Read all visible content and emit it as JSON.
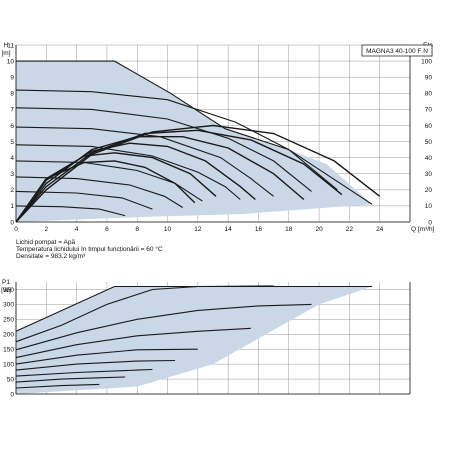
{
  "model_label": "MAGNA3 40-100 F N",
  "fluid_lines": [
    "Lichid pompat = Apă",
    "Temperatura lichidului în timpul funcționării = 60 °C",
    "Densitate = 983.2 kg/m³"
  ],
  "colors": {
    "area": "#c9d7e6",
    "curve": "#1a1a1a",
    "grid": "#9a9a9a"
  },
  "chart_data": [
    {
      "type": "line",
      "ylabel_lines": [
        "H",
        "[m]"
      ],
      "y2label_lines": [
        "Eta",
        "[%]"
      ],
      "xlabel": "Q [m³/h]",
      "xlim": [
        0,
        26
      ],
      "ylim": [
        0,
        11
      ],
      "y2lim": [
        0,
        110
      ],
      "x_ticks": [
        0,
        2,
        4,
        6,
        8,
        10,
        12,
        14,
        16,
        18,
        20,
        22,
        24
      ],
      "y_ticks": [
        0,
        1,
        2,
        3,
        4,
        5,
        6,
        7,
        8,
        9,
        10,
        11
      ],
      "y2_ticks": [
        0,
        10,
        20,
        30,
        40,
        50,
        60,
        70,
        80,
        90,
        100
      ],
      "grid": true,
      "operating_area": [
        [
          0,
          10
        ],
        [
          6.5,
          10
        ],
        [
          10.2,
          8
        ],
        [
          13.8,
          5.8
        ],
        [
          18,
          4.5
        ],
        [
          20.5,
          3.6
        ],
        [
          23.5,
          1.1
        ],
        [
          15,
          0.5
        ],
        [
          8,
          0.3
        ],
        [
          0,
          0
        ]
      ],
      "head_curves": [
        [
          [
            0,
            10
          ],
          [
            6.5,
            10
          ],
          [
            10.2,
            8
          ],
          [
            13.8,
            5.8
          ],
          [
            18,
            4.5
          ],
          [
            23.5,
            1.1
          ]
        ],
        [
          [
            0,
            8.2
          ],
          [
            5,
            8.1
          ],
          [
            10,
            7.6
          ],
          [
            14.5,
            6.2
          ],
          [
            18,
            4.5
          ],
          [
            21.2,
            2
          ]
        ],
        [
          [
            0,
            7.1
          ],
          [
            5,
            7
          ],
          [
            10,
            6.4
          ],
          [
            14,
            5.2
          ],
          [
            17,
            3.8
          ],
          [
            19.5,
            1.9
          ]
        ],
        [
          [
            0,
            5.9
          ],
          [
            5,
            5.8
          ],
          [
            9.5,
            5.3
          ],
          [
            13.5,
            4
          ],
          [
            15.5,
            2.7
          ],
          [
            17,
            1.6
          ]
        ],
        [
          [
            0,
            4.8
          ],
          [
            5,
            4.7
          ],
          [
            9,
            4.1
          ],
          [
            12,
            3.1
          ],
          [
            13.8,
            2.2
          ],
          [
            14.8,
            1.4
          ]
        ],
        [
          [
            0,
            3.8
          ],
          [
            4.5,
            3.7
          ],
          [
            8,
            3.2
          ],
          [
            10.5,
            2.4
          ],
          [
            12.3,
            1.3
          ]
        ],
        [
          [
            0,
            2.8
          ],
          [
            4,
            2.7
          ],
          [
            7.5,
            2.3
          ],
          [
            9.8,
            1.6
          ],
          [
            11,
            0.9
          ]
        ],
        [
          [
            0,
            1.9
          ],
          [
            4,
            1.8
          ],
          [
            7,
            1.5
          ],
          [
            9,
            0.8
          ]
        ],
        [
          [
            0,
            1
          ],
          [
            3,
            0.95
          ],
          [
            5.5,
            0.8
          ],
          [
            7.2,
            0.4
          ]
        ]
      ],
      "efficiency_curves": [
        [
          [
            0,
            0
          ],
          [
            2,
            20
          ],
          [
            5,
            42
          ],
          [
            9,
            56
          ],
          [
            13,
            60
          ],
          [
            17,
            55
          ],
          [
            21,
            38
          ],
          [
            24,
            16
          ]
        ],
        [
          [
            0,
            0
          ],
          [
            2,
            22
          ],
          [
            5,
            43
          ],
          [
            8.5,
            55
          ],
          [
            12,
            57
          ],
          [
            15.5,
            51
          ],
          [
            19,
            36
          ],
          [
            21.5,
            17
          ]
        ],
        [
          [
            0,
            0
          ],
          [
            2,
            24
          ],
          [
            5,
            45
          ],
          [
            8,
            53
          ],
          [
            11,
            53
          ],
          [
            14,
            46
          ],
          [
            17,
            30
          ],
          [
            19,
            14
          ]
        ],
        [
          [
            0,
            0
          ],
          [
            2,
            26
          ],
          [
            5,
            44
          ],
          [
            7.5,
            49
          ],
          [
            10,
            47
          ],
          [
            12.5,
            38
          ],
          [
            14.8,
            22
          ],
          [
            15.8,
            14
          ]
        ],
        [
          [
            0,
            0
          ],
          [
            2,
            27
          ],
          [
            4.5,
            41
          ],
          [
            6.5,
            43
          ],
          [
            9,
            40
          ],
          [
            11.5,
            30
          ],
          [
            13.2,
            16
          ]
        ],
        [
          [
            0,
            0
          ],
          [
            2,
            27
          ],
          [
            4.5,
            37
          ],
          [
            6.5,
            38
          ],
          [
            8.5,
            34
          ],
          [
            10.5,
            24
          ],
          [
            11.8,
            12
          ]
        ]
      ]
    },
    {
      "type": "line",
      "ylabel_lines": [
        "P1",
        "[W]"
      ],
      "xlim": [
        0,
        26
      ],
      "ylim": [
        0,
        375
      ],
      "y_ticks": [
        0,
        50,
        100,
        150,
        200,
        250,
        300,
        350
      ],
      "grid": true,
      "operating_area": [
        [
          0,
          210
        ],
        [
          6.5,
          360
        ],
        [
          23.5,
          360
        ],
        [
          20,
          300
        ],
        [
          13,
          100
        ],
        [
          8,
          25
        ],
        [
          0,
          0
        ]
      ],
      "power_curves": [
        [
          [
            0,
            210
          ],
          [
            6.5,
            360
          ],
          [
            23.5,
            360
          ]
        ],
        [
          [
            0,
            175
          ],
          [
            3,
            230
          ],
          [
            6,
            300
          ],
          [
            9,
            350
          ],
          [
            12,
            360
          ],
          [
            17,
            362
          ]
        ],
        [
          [
            0,
            148
          ],
          [
            4,
            205
          ],
          [
            8,
            250
          ],
          [
            12,
            280
          ],
          [
            16,
            295
          ],
          [
            19.5,
            300
          ]
        ],
        [
          [
            0,
            122
          ],
          [
            4,
            165
          ],
          [
            8,
            195
          ],
          [
            12,
            210
          ],
          [
            15.5,
            220
          ]
        ],
        [
          [
            0,
            100
          ],
          [
            4,
            130
          ],
          [
            8,
            148
          ],
          [
            12,
            150
          ]
        ],
        [
          [
            0,
            80
          ],
          [
            4,
            100
          ],
          [
            8,
            110
          ],
          [
            10.5,
            112
          ]
        ],
        [
          [
            0,
            60
          ],
          [
            4,
            72
          ],
          [
            8,
            80
          ],
          [
            9,
            82
          ]
        ],
        [
          [
            0,
            40
          ],
          [
            3,
            50
          ],
          [
            6,
            55
          ],
          [
            7.2,
            57
          ]
        ],
        [
          [
            0,
            20
          ],
          [
            3,
            28
          ],
          [
            5.5,
            32
          ]
        ]
      ]
    }
  ]
}
